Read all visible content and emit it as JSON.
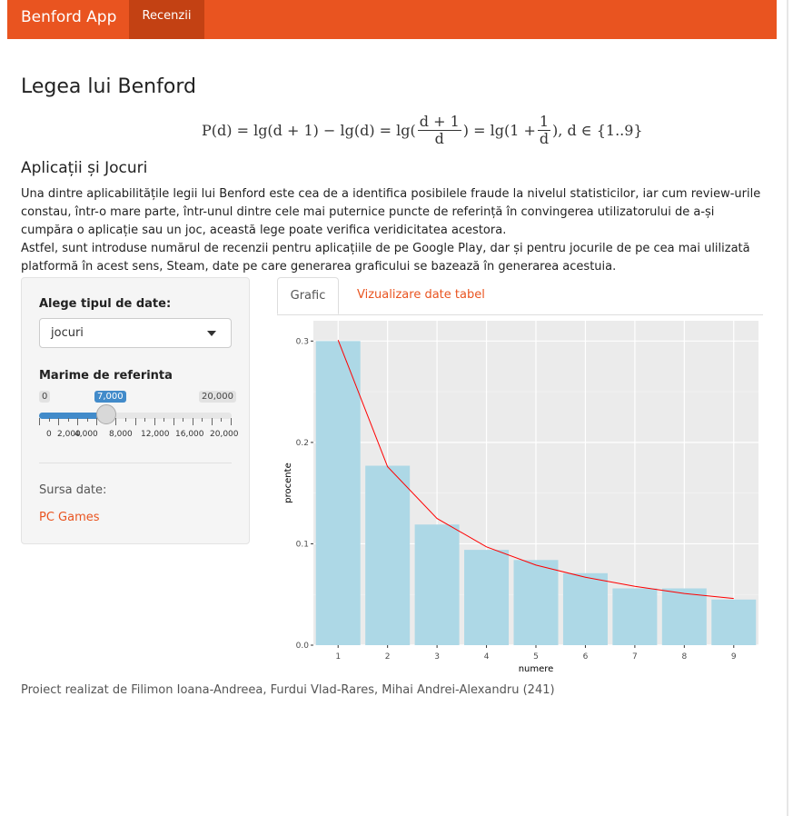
{
  "navbar": {
    "brand": "Benford App",
    "tab": "Recenzii",
    "color": "#e95420"
  },
  "page": {
    "title": "Legea lui Benford",
    "formula": {
      "lhs": "P(d) = lg(d + 1) − lg(d) = lg(",
      "frac1_num": "d + 1",
      "frac1_den": "d",
      "mid": ") = lg(1 +",
      "frac2_num": "1",
      "frac2_den": "d",
      "rhs": "), d ∈ {1..9}"
    },
    "section_title": "Aplicații și Jocuri",
    "paragraph1": "Una dintre aplicabilitățile legii lui Benford este cea de a identifica posibilele fraude la nivelul statisticilor, iar cum review-urile constau, într-o mare parte, într-unul dintre cele mai puternice puncte de referință în convingerea utilizatorului de a-și cumpăra o aplicație sau un joc, această lege poate verifica veridicitatea acestora.",
    "paragraph2": "Astfel, sunt introduse numărul de recenzii pentru aplicațiile de pe Google Play, dar și pentru jocurile de pe cea mai ulilizată platformă în acest sens, Steam, date pe care generarea graficului se bazează în generarea acestuia."
  },
  "sidebar": {
    "select_label": "Alege tipul de date:",
    "select_value": "jocuri",
    "slider_label": "Marime de referinta",
    "slider": {
      "min_label": "0",
      "max_label": "20,000",
      "value_label": "7,000",
      "min": 0,
      "max": 20000,
      "value": 7000,
      "tick_labels": [
        "0",
        "2,000",
        "4,000",
        "8,000",
        "12,000",
        "16,000",
        "20,000"
      ]
    },
    "source_label": "Sursa date:",
    "source_link": "PC Games"
  },
  "tabs": [
    {
      "label": "Grafic",
      "active": true
    },
    {
      "label": "Vizualizare date tabel",
      "active": false
    }
  ],
  "chart_data": {
    "type": "bar",
    "categories": [
      "1",
      "2",
      "3",
      "4",
      "5",
      "6",
      "7",
      "8",
      "9"
    ],
    "values": [
      0.3,
      0.177,
      0.119,
      0.094,
      0.084,
      0.071,
      0.056,
      0.056,
      0.045
    ],
    "series_line": [
      0.301,
      0.176,
      0.125,
      0.097,
      0.079,
      0.067,
      0.058,
      0.051,
      0.046
    ],
    "xlabel": "numere",
    "ylabel": "procente",
    "ylim": [
      0,
      0.32
    ],
    "yticks": [
      "0.0",
      "0.1",
      "0.2",
      "0.3"
    ],
    "bar_color": "#add8e6",
    "line_color": "#ff0000",
    "panel_color": "#ebebeb",
    "grid": true
  },
  "footer": "Proiect realizat de Filimon Ioana-Andreea, Furdui Vlad-Rares, Mihai Andrei-Alexandru (241)"
}
